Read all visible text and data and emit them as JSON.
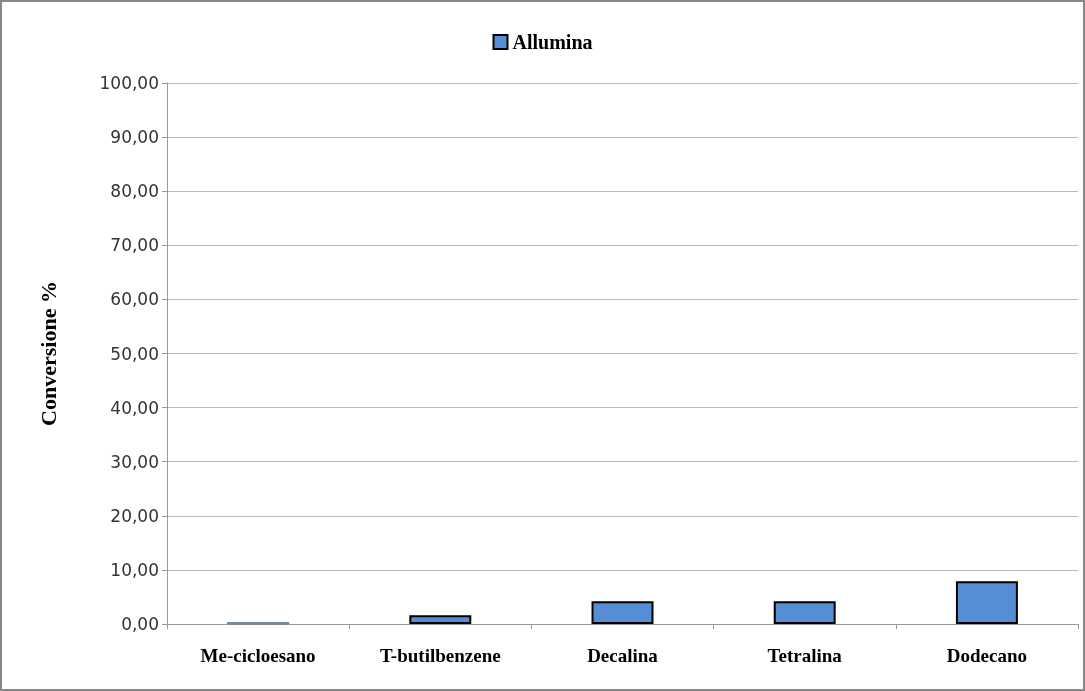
{
  "chart_data": {
    "type": "bar",
    "ylabel": "Conversione %",
    "categories": [
      "Me-cicloesano",
      "T-butilbenzene",
      "Decalina",
      "Tetralina",
      "Dodecano"
    ],
    "series": [
      {
        "name": "Allumina",
        "color": "#558ed5",
        "values": [
          0.3,
          1.6,
          4.2,
          4.2,
          7.9
        ]
      }
    ],
    "ylim": [
      0,
      100
    ],
    "yticks": [
      {
        "value": 0,
        "label": "0,00"
      },
      {
        "value": 10,
        "label": "10,00"
      },
      {
        "value": 20,
        "label": "20,00"
      },
      {
        "value": 30,
        "label": "30,00"
      },
      {
        "value": 40,
        "label": "40,00"
      },
      {
        "value": 50,
        "label": "50,00"
      },
      {
        "value": 60,
        "label": "60,00"
      },
      {
        "value": 70,
        "label": "70,00"
      },
      {
        "value": 80,
        "label": "80,00"
      },
      {
        "value": 90,
        "label": "90,00"
      },
      {
        "value": 100,
        "label": "100,00"
      }
    ],
    "grid": "y",
    "legend": "top"
  }
}
